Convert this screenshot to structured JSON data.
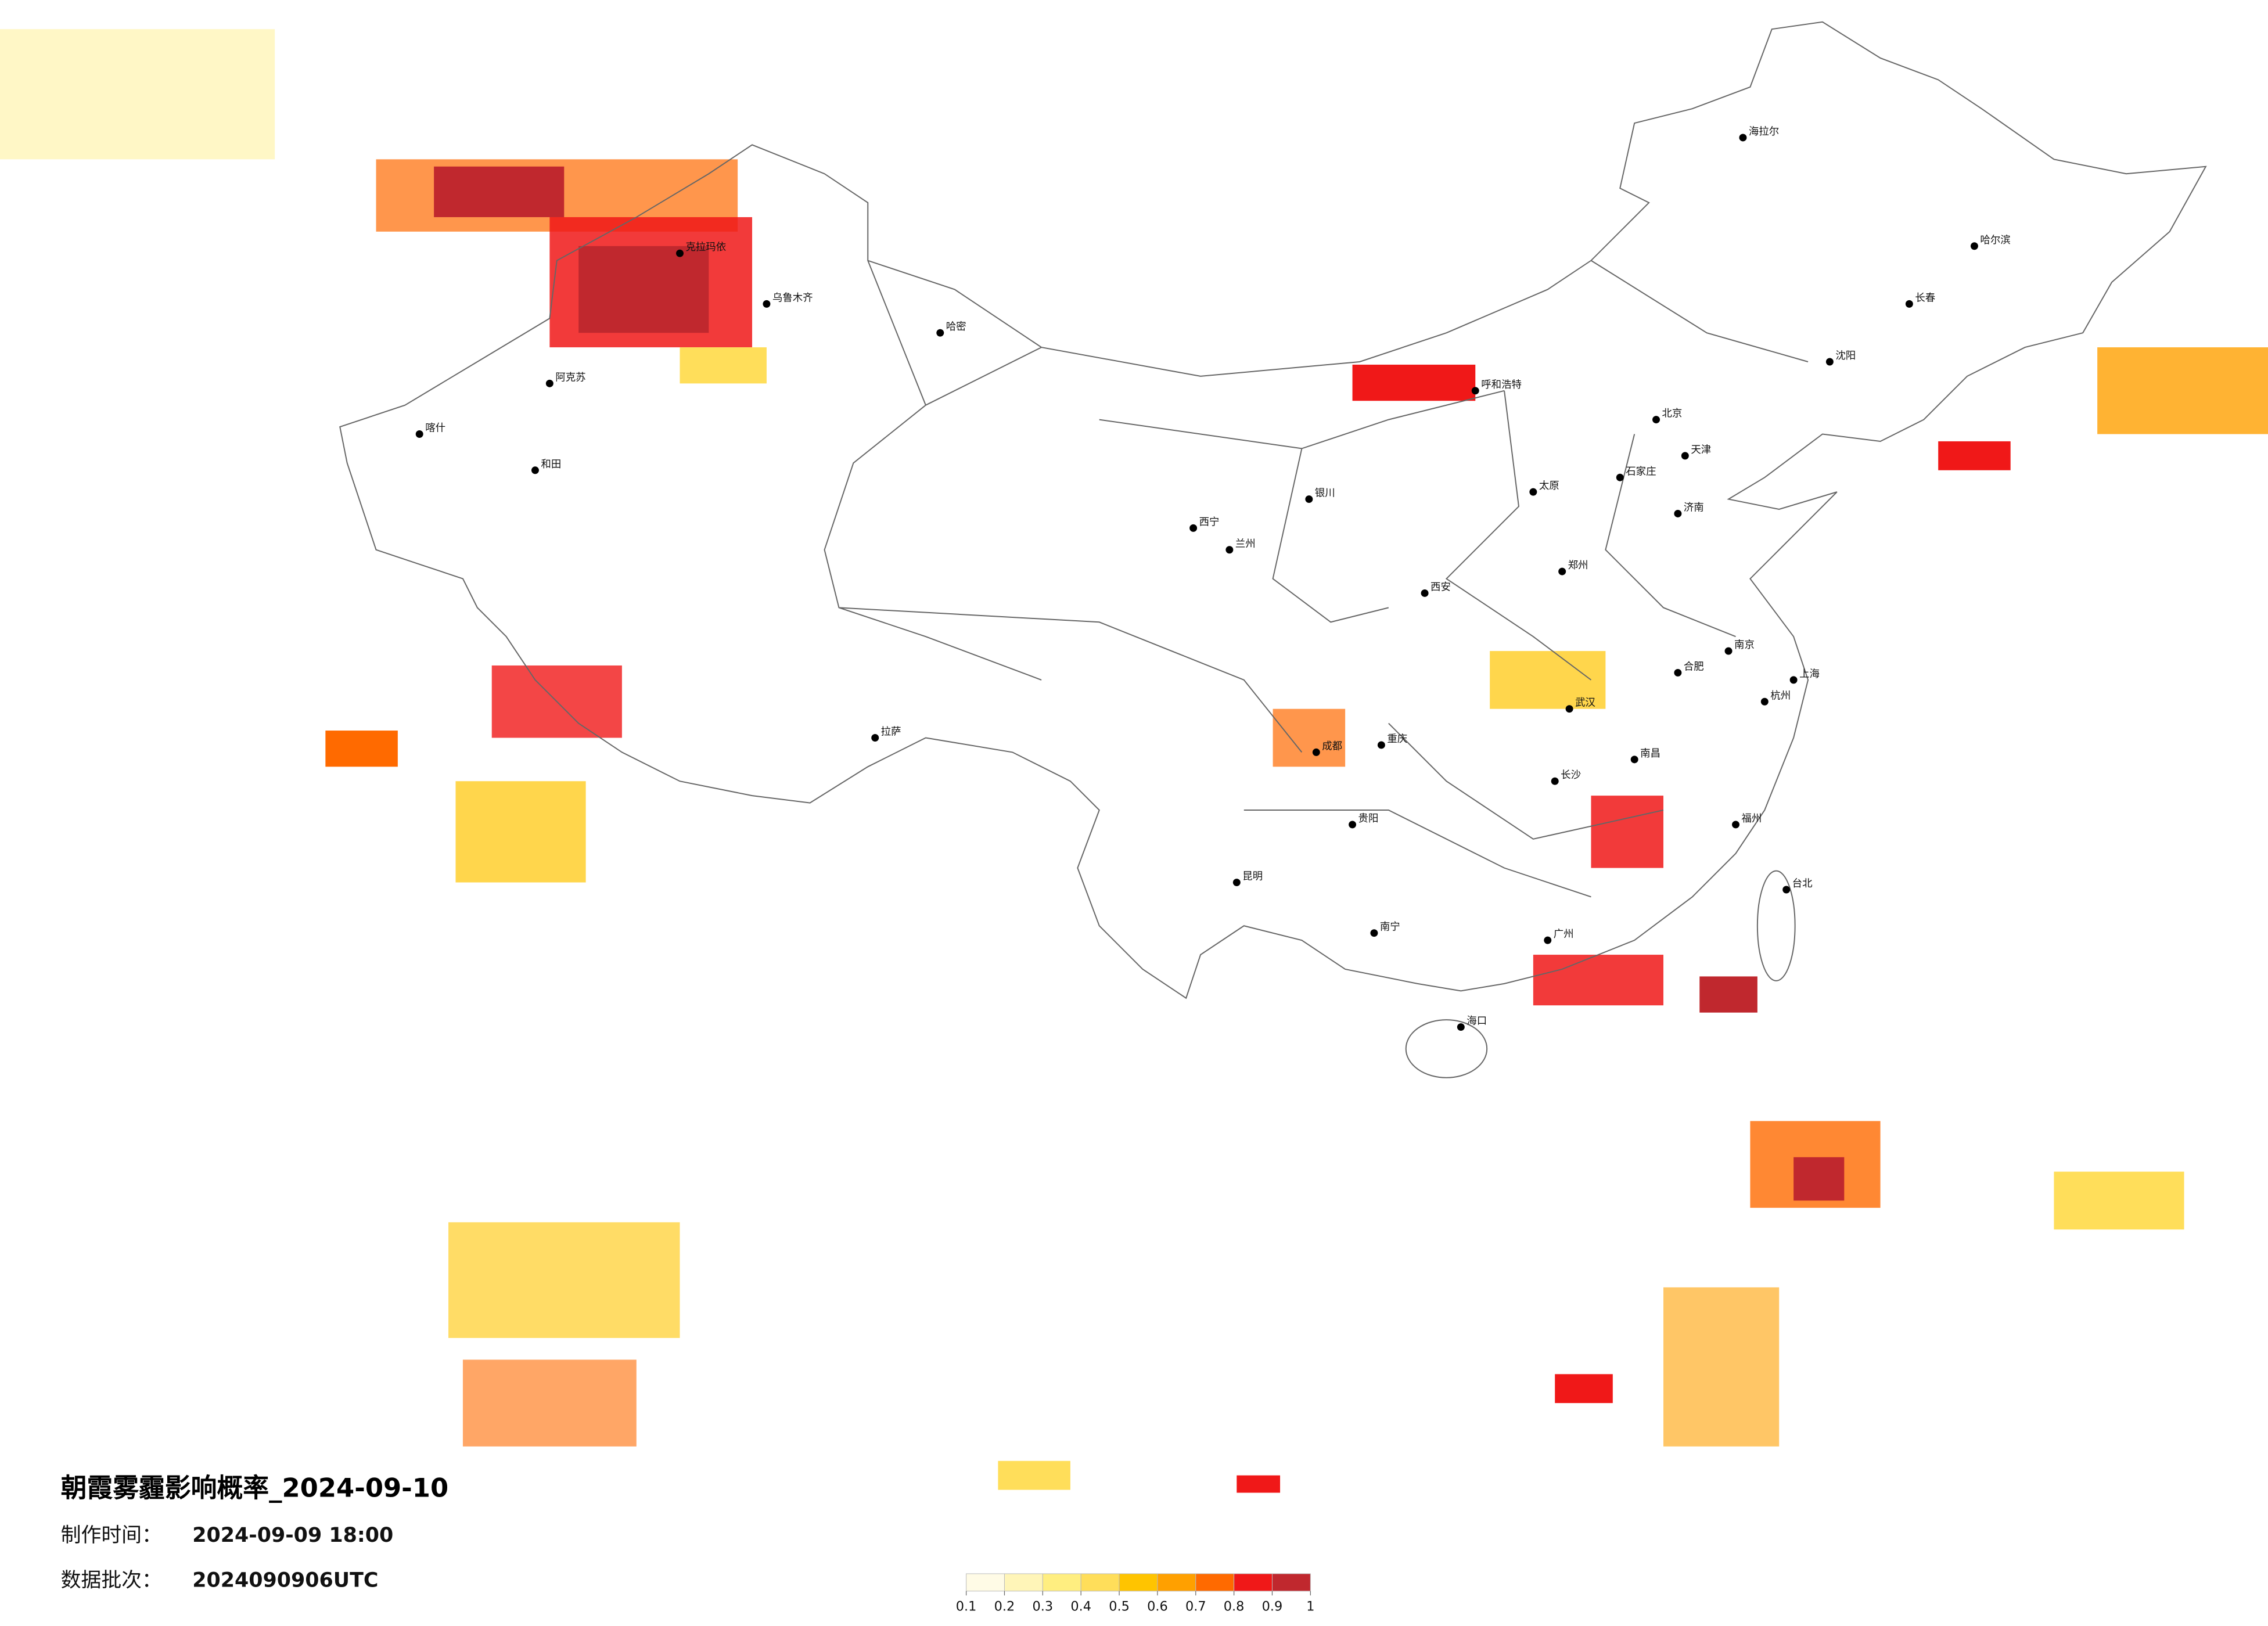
{
  "title": "朝霞雾霾影响概率_2024-09-10",
  "made_time_label": "制作时间：",
  "made_time": "2024-09-09 18:00",
  "batch_label": "数据批次：",
  "batch": "2024090906UTC",
  "legend": {
    "ticks": [
      0.1,
      0.2,
      0.3,
      0.4,
      0.5,
      0.6,
      0.7,
      0.8,
      0.9,
      1
    ],
    "colors": [
      "#fffbe6",
      "#fff5b8",
      "#ffee80",
      "#ffde5a",
      "#ffc400",
      "#ffa000",
      "#ff6a00",
      "#f01818",
      "#c0282e"
    ]
  },
  "cities": [
    "北京",
    "天津",
    "上海",
    "广州",
    "武汉",
    "成都",
    "重庆",
    "西安",
    "拉萨",
    "乌鲁木齐",
    "哈尔滨",
    "长春",
    "沈阳",
    "呼和浩特",
    "银川",
    "兰州",
    "西宁",
    "昆明",
    "贵阳",
    "南宁",
    "长沙",
    "南昌",
    "福州",
    "杭州",
    "南京",
    "合肥",
    "郑州",
    "济南",
    "石家庄",
    "太原",
    "海口",
    "台北",
    "喀什",
    "和田",
    "阿克苏",
    "克拉玛依",
    "哈密",
    "海拉尔"
  ]
}
